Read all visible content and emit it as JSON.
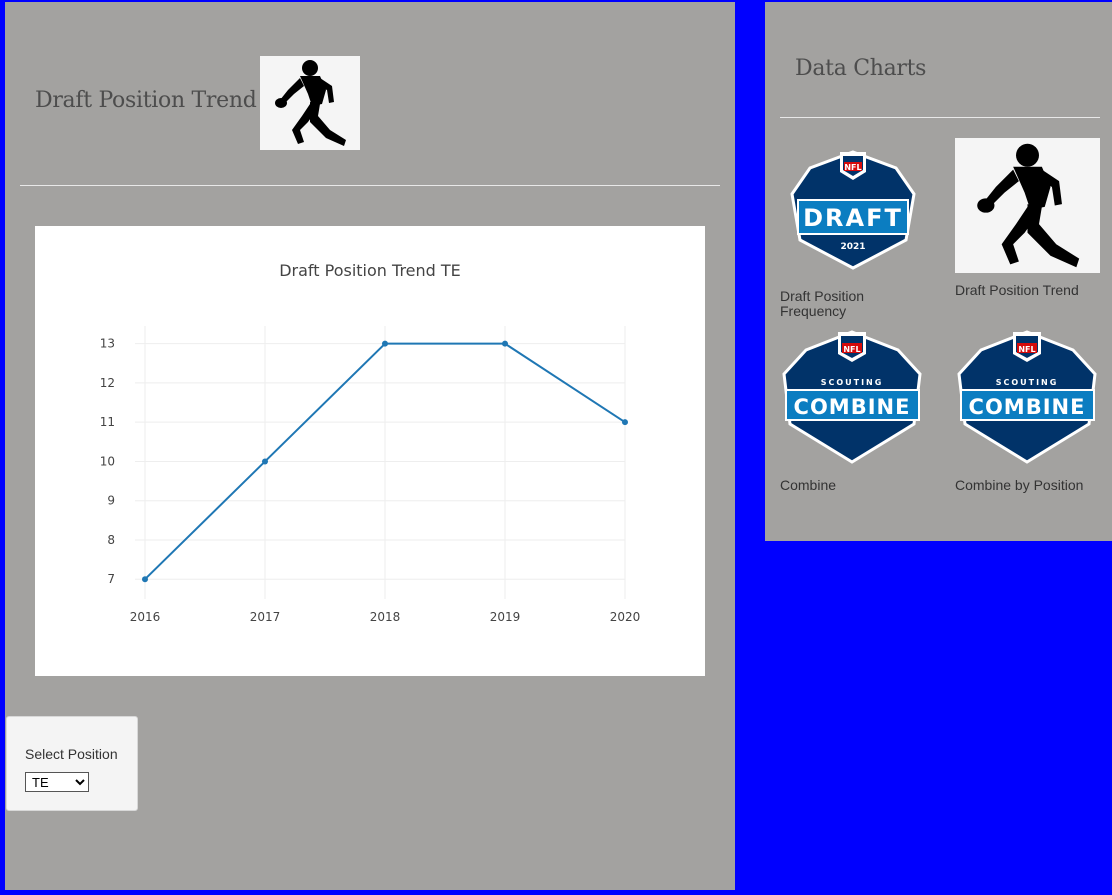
{
  "main": {
    "title": "Draft Position Trend",
    "title_icon": "football-player-silhouette-icon"
  },
  "chart_data": {
    "type": "line",
    "title": "Draft Position Trend TE",
    "x": [
      2016,
      2017,
      2018,
      2019,
      2020
    ],
    "series": [
      {
        "values": [
          7,
          10,
          13,
          13,
          11
        ],
        "color": "#1f77b4"
      }
    ],
    "x_tick_labels": [
      "2016",
      "2017",
      "2018",
      "2019",
      "2020"
    ],
    "y_tick_labels": [
      "7",
      "8",
      "9",
      "10",
      "11",
      "12",
      "13"
    ],
    "ylim": [
      6.7,
      13.45
    ],
    "grid": true,
    "legend": "none"
  },
  "selector": {
    "label": "Select Position",
    "value": "TE",
    "options": [
      "TE"
    ]
  },
  "sidebar": {
    "title": "Data Charts",
    "items": [
      {
        "label": "Draft Position Frequency",
        "icon": "nfl-draft-2021-logo",
        "logo_main": "DRAFT",
        "logo_sub": "2021",
        "logo_badge": "NFL"
      },
      {
        "label": "Draft Position Trend",
        "icon": "football-player-silhouette-icon"
      },
      {
        "label": "Combine",
        "icon": "nfl-scouting-combine-logo",
        "logo_main": "COMBINE",
        "logo_sub": "SCOUTING",
        "logo_badge": "NFL"
      },
      {
        "label": "Combine by Position",
        "icon": "nfl-scouting-combine-logo",
        "logo_main": "COMBINE",
        "logo_sub": "SCOUTING",
        "logo_badge": "NFL"
      }
    ]
  },
  "colors": {
    "page_background": "#0000ff",
    "panel_background": "#a3a2a0",
    "line": "#1f77b4",
    "logo_navy": "#013369",
    "logo_blue": "#0b7dc1",
    "logo_red": "#d50a0a"
  }
}
